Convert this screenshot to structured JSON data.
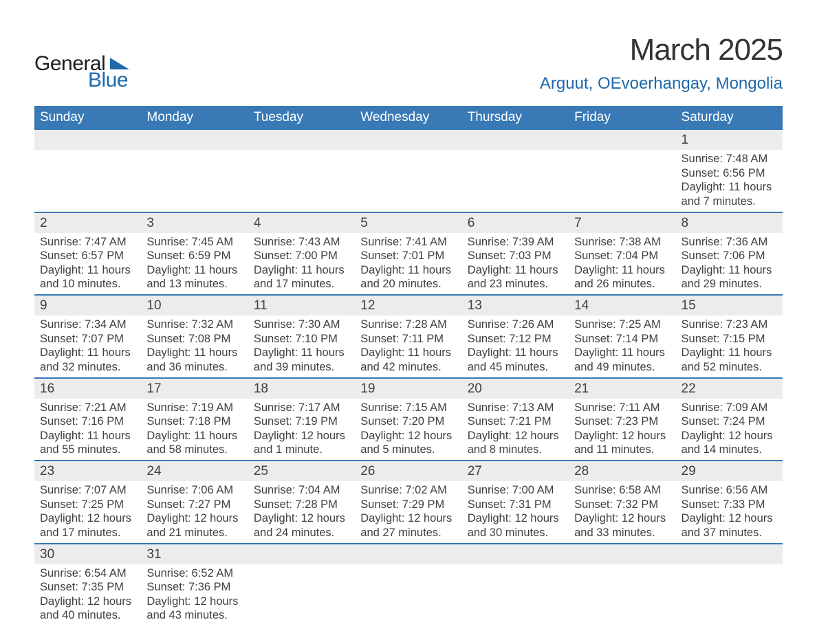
{
  "colors": {
    "header_bg": "#3879b6",
    "header_text": "#ffffff",
    "daynum_bg": "#ececec",
    "row_sep": "#3879b6",
    "body_text": "#404040",
    "logo_blue": "#1f68ab",
    "title_text": "#333333"
  },
  "logo": {
    "text1": "General",
    "text2": "Blue"
  },
  "header": {
    "title": "March 2025",
    "location": "Arguut, OEvoerhangay, Mongolia"
  },
  "day_headers": [
    "Sunday",
    "Monday",
    "Tuesday",
    "Wednesday",
    "Thursday",
    "Friday",
    "Saturday"
  ],
  "weeks": [
    [
      {
        "n": "",
        "sunrise": "",
        "sunset": "",
        "daylight": ""
      },
      {
        "n": "",
        "sunrise": "",
        "sunset": "",
        "daylight": ""
      },
      {
        "n": "",
        "sunrise": "",
        "sunset": "",
        "daylight": ""
      },
      {
        "n": "",
        "sunrise": "",
        "sunset": "",
        "daylight": ""
      },
      {
        "n": "",
        "sunrise": "",
        "sunset": "",
        "daylight": ""
      },
      {
        "n": "",
        "sunrise": "",
        "sunset": "",
        "daylight": ""
      },
      {
        "n": "1",
        "sunrise": "Sunrise: 7:48 AM",
        "sunset": "Sunset: 6:56 PM",
        "daylight": "Daylight: 11 hours and 7 minutes."
      }
    ],
    [
      {
        "n": "2",
        "sunrise": "Sunrise: 7:47 AM",
        "sunset": "Sunset: 6:57 PM",
        "daylight": "Daylight: 11 hours and 10 minutes."
      },
      {
        "n": "3",
        "sunrise": "Sunrise: 7:45 AM",
        "sunset": "Sunset: 6:59 PM",
        "daylight": "Daylight: 11 hours and 13 minutes."
      },
      {
        "n": "4",
        "sunrise": "Sunrise: 7:43 AM",
        "sunset": "Sunset: 7:00 PM",
        "daylight": "Daylight: 11 hours and 17 minutes."
      },
      {
        "n": "5",
        "sunrise": "Sunrise: 7:41 AM",
        "sunset": "Sunset: 7:01 PM",
        "daylight": "Daylight: 11 hours and 20 minutes."
      },
      {
        "n": "6",
        "sunrise": "Sunrise: 7:39 AM",
        "sunset": "Sunset: 7:03 PM",
        "daylight": "Daylight: 11 hours and 23 minutes."
      },
      {
        "n": "7",
        "sunrise": "Sunrise: 7:38 AM",
        "sunset": "Sunset: 7:04 PM",
        "daylight": "Daylight: 11 hours and 26 minutes."
      },
      {
        "n": "8",
        "sunrise": "Sunrise: 7:36 AM",
        "sunset": "Sunset: 7:06 PM",
        "daylight": "Daylight: 11 hours and 29 minutes."
      }
    ],
    [
      {
        "n": "9",
        "sunrise": "Sunrise: 7:34 AM",
        "sunset": "Sunset: 7:07 PM",
        "daylight": "Daylight: 11 hours and 32 minutes."
      },
      {
        "n": "10",
        "sunrise": "Sunrise: 7:32 AM",
        "sunset": "Sunset: 7:08 PM",
        "daylight": "Daylight: 11 hours and 36 minutes."
      },
      {
        "n": "11",
        "sunrise": "Sunrise: 7:30 AM",
        "sunset": "Sunset: 7:10 PM",
        "daylight": "Daylight: 11 hours and 39 minutes."
      },
      {
        "n": "12",
        "sunrise": "Sunrise: 7:28 AM",
        "sunset": "Sunset: 7:11 PM",
        "daylight": "Daylight: 11 hours and 42 minutes."
      },
      {
        "n": "13",
        "sunrise": "Sunrise: 7:26 AM",
        "sunset": "Sunset: 7:12 PM",
        "daylight": "Daylight: 11 hours and 45 minutes."
      },
      {
        "n": "14",
        "sunrise": "Sunrise: 7:25 AM",
        "sunset": "Sunset: 7:14 PM",
        "daylight": "Daylight: 11 hours and 49 minutes."
      },
      {
        "n": "15",
        "sunrise": "Sunrise: 7:23 AM",
        "sunset": "Sunset: 7:15 PM",
        "daylight": "Daylight: 11 hours and 52 minutes."
      }
    ],
    [
      {
        "n": "16",
        "sunrise": "Sunrise: 7:21 AM",
        "sunset": "Sunset: 7:16 PM",
        "daylight": "Daylight: 11 hours and 55 minutes."
      },
      {
        "n": "17",
        "sunrise": "Sunrise: 7:19 AM",
        "sunset": "Sunset: 7:18 PM",
        "daylight": "Daylight: 11 hours and 58 minutes."
      },
      {
        "n": "18",
        "sunrise": "Sunrise: 7:17 AM",
        "sunset": "Sunset: 7:19 PM",
        "daylight": "Daylight: 12 hours and 1 minute."
      },
      {
        "n": "19",
        "sunrise": "Sunrise: 7:15 AM",
        "sunset": "Sunset: 7:20 PM",
        "daylight": "Daylight: 12 hours and 5 minutes."
      },
      {
        "n": "20",
        "sunrise": "Sunrise: 7:13 AM",
        "sunset": "Sunset: 7:21 PM",
        "daylight": "Daylight: 12 hours and 8 minutes."
      },
      {
        "n": "21",
        "sunrise": "Sunrise: 7:11 AM",
        "sunset": "Sunset: 7:23 PM",
        "daylight": "Daylight: 12 hours and 11 minutes."
      },
      {
        "n": "22",
        "sunrise": "Sunrise: 7:09 AM",
        "sunset": "Sunset: 7:24 PM",
        "daylight": "Daylight: 12 hours and 14 minutes."
      }
    ],
    [
      {
        "n": "23",
        "sunrise": "Sunrise: 7:07 AM",
        "sunset": "Sunset: 7:25 PM",
        "daylight": "Daylight: 12 hours and 17 minutes."
      },
      {
        "n": "24",
        "sunrise": "Sunrise: 7:06 AM",
        "sunset": "Sunset: 7:27 PM",
        "daylight": "Daylight: 12 hours and 21 minutes."
      },
      {
        "n": "25",
        "sunrise": "Sunrise: 7:04 AM",
        "sunset": "Sunset: 7:28 PM",
        "daylight": "Daylight: 12 hours and 24 minutes."
      },
      {
        "n": "26",
        "sunrise": "Sunrise: 7:02 AM",
        "sunset": "Sunset: 7:29 PM",
        "daylight": "Daylight: 12 hours and 27 minutes."
      },
      {
        "n": "27",
        "sunrise": "Sunrise: 7:00 AM",
        "sunset": "Sunset: 7:31 PM",
        "daylight": "Daylight: 12 hours and 30 minutes."
      },
      {
        "n": "28",
        "sunrise": "Sunrise: 6:58 AM",
        "sunset": "Sunset: 7:32 PM",
        "daylight": "Daylight: 12 hours and 33 minutes."
      },
      {
        "n": "29",
        "sunrise": "Sunrise: 6:56 AM",
        "sunset": "Sunset: 7:33 PM",
        "daylight": "Daylight: 12 hours and 37 minutes."
      }
    ],
    [
      {
        "n": "30",
        "sunrise": "Sunrise: 6:54 AM",
        "sunset": "Sunset: 7:35 PM",
        "daylight": "Daylight: 12 hours and 40 minutes."
      },
      {
        "n": "31",
        "sunrise": "Sunrise: 6:52 AM",
        "sunset": "Sunset: 7:36 PM",
        "daylight": "Daylight: 12 hours and 43 minutes."
      },
      {
        "n": "",
        "sunrise": "",
        "sunset": "",
        "daylight": ""
      },
      {
        "n": "",
        "sunrise": "",
        "sunset": "",
        "daylight": ""
      },
      {
        "n": "",
        "sunrise": "",
        "sunset": "",
        "daylight": ""
      },
      {
        "n": "",
        "sunrise": "",
        "sunset": "",
        "daylight": ""
      },
      {
        "n": "",
        "sunrise": "",
        "sunset": "",
        "daylight": ""
      }
    ]
  ]
}
